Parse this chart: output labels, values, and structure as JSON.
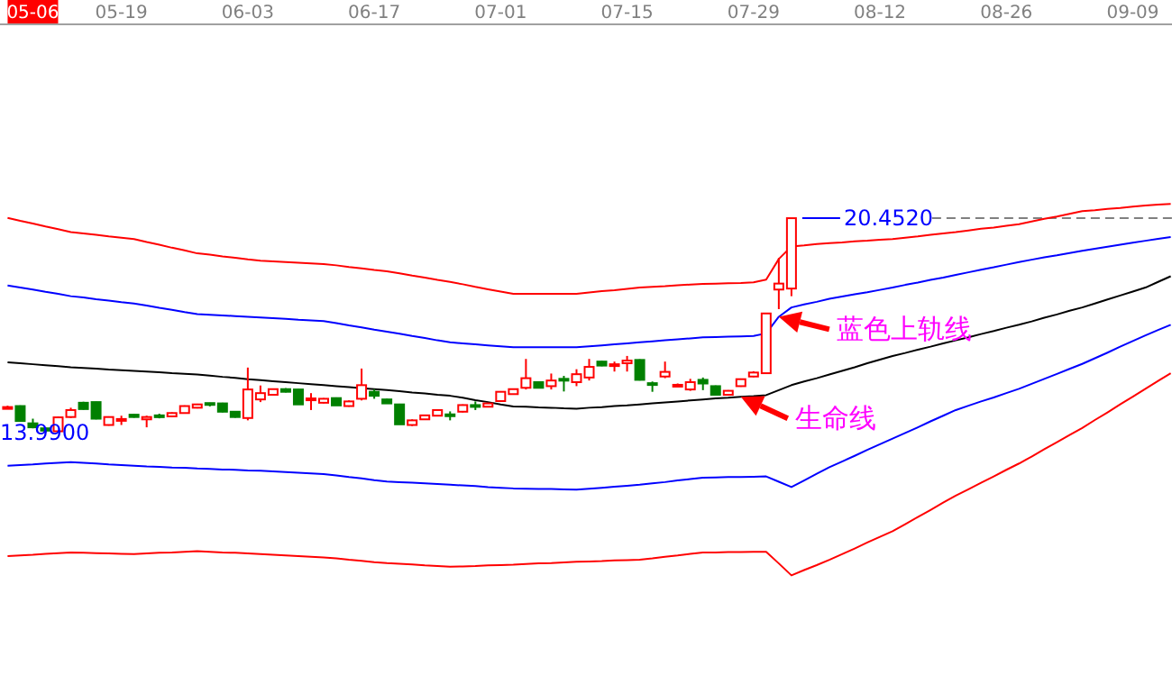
{
  "chart_data": {
    "type": "candlestick",
    "categories": [
      null,
      null,
      "05-06",
      null,
      null,
      null,
      null,
      null,
      null,
      "05-19",
      null,
      null,
      null,
      null,
      null,
      null,
      null,
      null,
      null,
      "06-03",
      null,
      null,
      null,
      null,
      null,
      null,
      null,
      null,
      null,
      "06-17",
      null,
      null,
      null,
      null,
      null,
      null,
      null,
      null,
      null,
      "07-01",
      null,
      null,
      null,
      null,
      null,
      null,
      null,
      null,
      null,
      "07-15",
      null,
      null,
      null,
      null,
      null,
      null,
      null,
      null,
      null,
      "07-29",
      null,
      null,
      null,
      null,
      null,
      null,
      null,
      null,
      null,
      "08-12",
      null,
      null,
      null,
      null,
      null,
      null,
      null,
      null,
      null,
      "08-26",
      null,
      null,
      null,
      null,
      null,
      null,
      null,
      null,
      null,
      "09-09",
      null,
      null,
      null
    ],
    "ohlc": [
      [
        14.74,
        14.8,
        14.7,
        14.76
      ],
      [
        14.79,
        14.81,
        14.33,
        14.34
      ],
      [
        14.27,
        14.41,
        14.12,
        14.15
      ],
      [
        14.12,
        14.14,
        13.99,
        14.05
      ],
      [
        14.03,
        14.48,
        14.01,
        14.45
      ],
      [
        14.46,
        14.74,
        14.43,
        14.67
      ],
      [
        14.89,
        14.92,
        14.68,
        14.7
      ],
      [
        14.91,
        14.92,
        14.39,
        14.41
      ],
      [
        14.22,
        14.48,
        14.2,
        14.46
      ],
      [
        14.38,
        14.5,
        14.22,
        14.4
      ],
      [
        14.53,
        14.55,
        14.44,
        14.46
      ],
      [
        14.39,
        14.5,
        14.15,
        14.46
      ],
      [
        14.51,
        14.56,
        14.42,
        14.49
      ],
      [
        14.48,
        14.6,
        14.46,
        14.58
      ],
      [
        14.58,
        14.81,
        14.56,
        14.79
      ],
      [
        14.74,
        14.86,
        14.72,
        14.84
      ],
      [
        14.88,
        14.89,
        14.78,
        14.86
      ],
      [
        14.87,
        14.89,
        14.6,
        14.62
      ],
      [
        14.62,
        14.64,
        14.44,
        14.46
      ],
      [
        14.43,
        15.95,
        14.36,
        15.29
      ],
      [
        14.99,
        15.41,
        14.91,
        15.18
      ],
      [
        15.13,
        15.3,
        15.11,
        15.3
      ],
      [
        15.3,
        15.33,
        15.2,
        15.22
      ],
      [
        15.29,
        15.3,
        14.84,
        14.84
      ],
      [
        15.0,
        15.18,
        14.67,
        15.02
      ],
      [
        14.89,
        15.03,
        14.87,
        15.01
      ],
      [
        15.03,
        15.05,
        14.81,
        14.81
      ],
      [
        14.79,
        14.96,
        14.77,
        14.93
      ],
      [
        15.01,
        15.92,
        14.96,
        15.42
      ],
      [
        15.22,
        15.3,
        15.01,
        15.1
      ],
      [
        14.99,
        15.01,
        14.87,
        14.87
      ],
      [
        14.84,
        14.86,
        14.24,
        14.24
      ],
      [
        14.22,
        14.39,
        14.19,
        14.36
      ],
      [
        14.39,
        14.53,
        14.37,
        14.51
      ],
      [
        14.5,
        14.69,
        14.48,
        14.67
      ],
      [
        14.54,
        14.63,
        14.36,
        14.52
      ],
      [
        14.62,
        14.84,
        14.6,
        14.82
      ],
      [
        14.82,
        14.93,
        14.67,
        14.8
      ],
      [
        14.77,
        14.89,
        14.75,
        14.87
      ],
      [
        14.94,
        15.24,
        14.92,
        15.22
      ],
      [
        15.15,
        15.32,
        15.13,
        15.3
      ],
      [
        15.34,
        16.21,
        15.29,
        15.63
      ],
      [
        15.51,
        15.53,
        15.34,
        15.34
      ],
      [
        15.39,
        15.77,
        15.29,
        15.56
      ],
      [
        15.61,
        15.7,
        15.23,
        15.59
      ],
      [
        15.51,
        15.9,
        15.39,
        15.75
      ],
      [
        15.65,
        16.21,
        15.56,
        15.97
      ],
      [
        16.13,
        16.15,
        15.99,
        16.01
      ],
      [
        16.03,
        16.13,
        15.83,
        16.05
      ],
      [
        16.08,
        16.3,
        15.83,
        16.16
      ],
      [
        16.18,
        16.2,
        15.56,
        15.58
      ],
      [
        15.48,
        15.53,
        15.22,
        15.46
      ],
      [
        15.68,
        16.13,
        15.63,
        15.82
      ],
      [
        15.41,
        15.47,
        15.39,
        15.43
      ],
      [
        15.29,
        15.61,
        15.25,
        15.51
      ],
      [
        15.58,
        15.65,
        15.27,
        15.47
      ],
      [
        15.39,
        15.41,
        15.13,
        15.13
      ],
      [
        15.13,
        15.27,
        15.11,
        15.25
      ],
      [
        15.39,
        15.62,
        15.37,
        15.6
      ],
      [
        15.68,
        15.84,
        15.66,
        15.8
      ],
      [
        15.78,
        17.6,
        15.76,
        17.58
      ],
      [
        18.3,
        19.25,
        17.71,
        18.48
      ],
      [
        18.33,
        20.452,
        18.1,
        20.45
      ],
      null,
      null,
      null,
      null,
      null,
      null,
      null,
      null,
      null,
      null,
      null,
      null,
      null,
      null,
      null,
      null,
      null,
      null,
      null,
      null,
      null,
      null,
      null,
      null,
      null,
      null,
      null,
      null,
      null,
      null
    ],
    "colors": [
      "#ff0000",
      "#008000",
      "#008000",
      "#008000",
      "#ff0000",
      "#ff0000",
      "#008000",
      "#008000",
      "#ff0000",
      "#ff0000",
      "#008000",
      "#ff0000",
      "#008000",
      "#ff0000",
      "#ff0000",
      "#ff0000",
      "#008000",
      "#008000",
      "#008000",
      "#ff0000",
      "#ff0000",
      "#ff0000",
      "#008000",
      "#008000",
      "#ff0000",
      "#ff0000",
      "#008000",
      "#ff0000",
      "#ff0000",
      "#008000",
      "#008000",
      "#008000",
      "#ff0000",
      "#ff0000",
      "#ff0000",
      "#008000",
      "#ff0000",
      "#008000",
      "#ff0000",
      "#ff0000",
      "#ff0000",
      "#ff0000",
      "#008000",
      "#ff0000",
      "#008000",
      "#ff0000",
      "#ff0000",
      "#008000",
      "#ff0000",
      "#ff0000",
      "#008000",
      "#008000",
      "#ff0000",
      "#ff0000",
      "#ff0000",
      "#008000",
      "#008000",
      "#ff0000",
      "#ff0000",
      "#ff0000",
      "#ff0000",
      "#ff0000",
      "#ff0000",
      null,
      null,
      null,
      null,
      null,
      null,
      null,
      null,
      null,
      null,
      null,
      null,
      null,
      null,
      null,
      null,
      null,
      null,
      null,
      null,
      null,
      null,
      null,
      null,
      null,
      null,
      null,
      null,
      null,
      null
    ],
    "series": [
      {
        "type": "line",
        "color": "#ff0000",
        "values": [
          20.46,
          20.37,
          20.29,
          20.2,
          20.12,
          20.03,
          19.99,
          19.95,
          19.9,
          19.86,
          19.82,
          19.73,
          19.65,
          19.56,
          19.48,
          19.39,
          19.35,
          19.3,
          19.26,
          19.21,
          19.17,
          19.15,
          19.13,
          19.11,
          19.09,
          19.07,
          19.03,
          18.98,
          18.94,
          18.89,
          18.85,
          18.79,
          18.72,
          18.66,
          18.59,
          18.53,
          18.46,
          18.38,
          18.31,
          18.24,
          18.17,
          18.17,
          18.17,
          18.17,
          18.17,
          18.17,
          18.21,
          18.25,
          18.28,
          18.32,
          18.36,
          18.38,
          18.4,
          18.43,
          18.45,
          18.47,
          18.48,
          18.49,
          18.5,
          18.52,
          18.6,
          19.22,
          19.6,
          19.63,
          19.67,
          19.7,
          19.72,
          19.75,
          19.77,
          19.8,
          19.82,
          19.86,
          19.9,
          19.95,
          19.99,
          20.03,
          20.08,
          20.13,
          20.17,
          20.22,
          20.27,
          20.35,
          20.43,
          20.5,
          20.58,
          20.66,
          20.69,
          20.73,
          20.76,
          20.8,
          20.83,
          20.86,
          20.88
        ]
      },
      {
        "type": "line",
        "color": "#0000ff",
        "values": [
          18.42,
          18.36,
          18.3,
          18.23,
          18.17,
          18.1,
          18.06,
          18.01,
          17.97,
          17.92,
          17.88,
          17.82,
          17.75,
          17.69,
          17.62,
          17.56,
          17.54,
          17.52,
          17.5,
          17.48,
          17.46,
          17.44,
          17.42,
          17.39,
          17.37,
          17.35,
          17.29,
          17.22,
          17.16,
          17.09,
          17.03,
          16.97,
          16.9,
          16.84,
          16.77,
          16.71,
          16.68,
          16.65,
          16.62,
          16.59,
          16.56,
          16.56,
          16.56,
          16.56,
          16.56,
          16.56,
          16.59,
          16.62,
          16.65,
          16.68,
          16.71,
          16.74,
          16.77,
          16.8,
          16.83,
          16.86,
          16.87,
          16.88,
          16.89,
          16.9,
          16.98,
          17.48,
          17.76,
          17.85,
          17.93,
          18.02,
          18.09,
          18.16,
          18.22,
          18.29,
          18.36,
          18.44,
          18.51,
          18.59,
          18.66,
          18.74,
          18.82,
          18.9,
          18.97,
          19.05,
          19.13,
          19.2,
          19.27,
          19.33,
          19.4,
          19.47,
          19.53,
          19.59,
          19.65,
          19.71,
          19.77,
          19.83,
          19.88
        ]
      },
      {
        "type": "line",
        "color": "#000000",
        "values": [
          16.11,
          16.08,
          16.05,
          16.02,
          15.99,
          15.96,
          15.94,
          15.92,
          15.89,
          15.87,
          15.85,
          15.83,
          15.81,
          15.78,
          15.76,
          15.74,
          15.71,
          15.67,
          15.64,
          15.6,
          15.57,
          15.54,
          15.51,
          15.48,
          15.45,
          15.42,
          15.39,
          15.36,
          15.33,
          15.3,
          15.27,
          15.24,
          15.2,
          15.17,
          15.13,
          15.1,
          15.04,
          14.97,
          14.91,
          14.84,
          14.78,
          14.77,
          14.75,
          14.74,
          14.72,
          14.71,
          14.74,
          14.76,
          14.79,
          14.81,
          14.84,
          14.87,
          14.9,
          14.93,
          14.96,
          14.99,
          15.02,
          15.04,
          15.07,
          15.09,
          15.12,
          15.27,
          15.42,
          15.53,
          15.63,
          15.74,
          15.85,
          15.96,
          16.08,
          16.19,
          16.3,
          16.39,
          16.49,
          16.58,
          16.68,
          16.77,
          16.86,
          16.96,
          17.05,
          17.15,
          17.24,
          17.34,
          17.45,
          17.55,
          17.66,
          17.76,
          17.88,
          18.0,
          18.12,
          18.24,
          18.36,
          18.53,
          18.7
        ]
      },
      {
        "type": "line",
        "color": "#0000ff",
        "values": [
          12.99,
          13.01,
          13.03,
          13.06,
          13.08,
          13.1,
          13.08,
          13.06,
          13.03,
          13.01,
          12.99,
          12.97,
          12.96,
          12.94,
          12.93,
          12.91,
          12.9,
          12.88,
          12.87,
          12.85,
          12.84,
          12.82,
          12.8,
          12.78,
          12.76,
          12.74,
          12.7,
          12.65,
          12.61,
          12.56,
          12.52,
          12.5,
          12.48,
          12.46,
          12.44,
          12.42,
          12.4,
          12.38,
          12.35,
          12.33,
          12.31,
          12.3,
          12.29,
          12.29,
          12.28,
          12.27,
          12.3,
          12.33,
          12.36,
          12.39,
          12.42,
          12.46,
          12.5,
          12.55,
          12.59,
          12.63,
          12.64,
          12.65,
          12.65,
          12.66,
          12.67,
          12.51,
          12.35,
          12.55,
          12.75,
          12.95,
          13.12,
          13.29,
          13.47,
          13.64,
          13.81,
          13.98,
          14.15,
          14.33,
          14.5,
          14.67,
          14.8,
          14.93,
          15.05,
          15.18,
          15.31,
          15.46,
          15.61,
          15.76,
          15.91,
          16.06,
          16.23,
          16.4,
          16.58,
          16.75,
          16.92,
          17.08,
          17.24
        ]
      },
      {
        "type": "line",
        "color": "#ff0000",
        "values": [
          10.27,
          10.29,
          10.31,
          10.34,
          10.36,
          10.38,
          10.37,
          10.36,
          10.35,
          10.34,
          10.33,
          10.35,
          10.37,
          10.38,
          10.4,
          10.42,
          10.4,
          10.38,
          10.37,
          10.35,
          10.33,
          10.31,
          10.29,
          10.27,
          10.25,
          10.23,
          10.2,
          10.16,
          10.13,
          10.09,
          10.06,
          10.04,
          10.02,
          9.99,
          9.97,
          9.95,
          9.96,
          9.97,
          9.99,
          10.0,
          10.01,
          10.03,
          10.05,
          10.06,
          10.08,
          10.1,
          10.11,
          10.12,
          10.14,
          10.15,
          10.16,
          10.2,
          10.25,
          10.29,
          10.34,
          10.38,
          10.38,
          10.39,
          10.39,
          10.4,
          10.4,
          10.05,
          9.69,
          9.85,
          10.0,
          10.16,
          10.33,
          10.5,
          10.68,
          10.85,
          11.02,
          11.23,
          11.45,
          11.66,
          11.88,
          12.09,
          12.28,
          12.48,
          12.67,
          12.87,
          13.06,
          13.27,
          13.49,
          13.7,
          13.92,
          14.13,
          14.37,
          14.6,
          14.84,
          15.07,
          15.31,
          15.55,
          15.78
        ]
      }
    ],
    "tick_labels": "x",
    "ref_lines": [
      {
        "axis": "y",
        "value": 20.452,
        "color": "#808080",
        "line_style": "dashed"
      }
    ],
    "annotations": [
      "20.4520",
      "13.9900",
      "蓝色上轨线",
      "生命线"
    ]
  }
}
